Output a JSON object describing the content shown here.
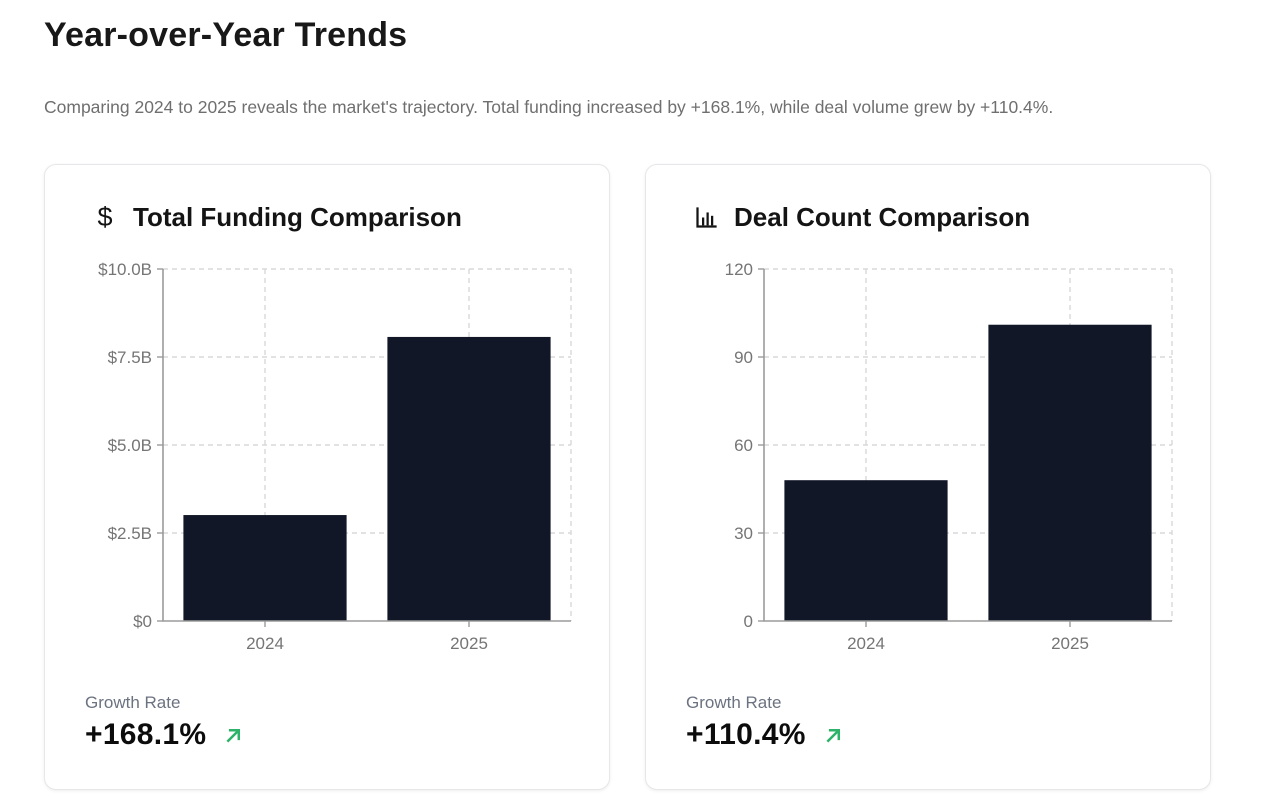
{
  "page": {
    "title": "Year-over-Year Trends",
    "subtitle": "Comparing 2024 to 2025 reveals the market's trajectory. Total funding increased by +168.1%, while deal volume grew by +110.4%."
  },
  "colors": {
    "bar": "#121727",
    "growth_green": "#2db269",
    "gridline": "#d9d9d9",
    "axis": "#9b9b9b",
    "tick_label": "#757575"
  },
  "cards": [
    {
      "icon": "dollar-icon",
      "icon_glyph": "$",
      "title": "Total Funding Comparison",
      "growth_label": "Growth Rate",
      "growth_value": "+168.1%"
    },
    {
      "icon": "bar-chart-icon",
      "title": "Deal Count Comparison",
      "growth_label": "Growth Rate",
      "growth_value": "+110.4%"
    }
  ],
  "chart_data": [
    {
      "type": "bar",
      "title": "Total Funding Comparison",
      "categories": [
        "2024",
        "2025"
      ],
      "values": [
        3.01,
        8.07
      ],
      "unit": "USD billions",
      "ylim": [
        0,
        10
      ],
      "yticks": [
        "$0",
        "$2.5B",
        "$5.0B",
        "$7.5B",
        "$10.0B"
      ],
      "grid": "dashed",
      "legend": "none",
      "bar_color": "#121727"
    },
    {
      "type": "bar",
      "title": "Deal Count Comparison",
      "categories": [
        "2024",
        "2025"
      ],
      "values": [
        48,
        101
      ],
      "unit": "deals",
      "ylim": [
        0,
        120
      ],
      "yticks": [
        "0",
        "30",
        "60",
        "90",
        "120"
      ],
      "grid": "dashed",
      "legend": "none",
      "bar_color": "#121727"
    }
  ]
}
